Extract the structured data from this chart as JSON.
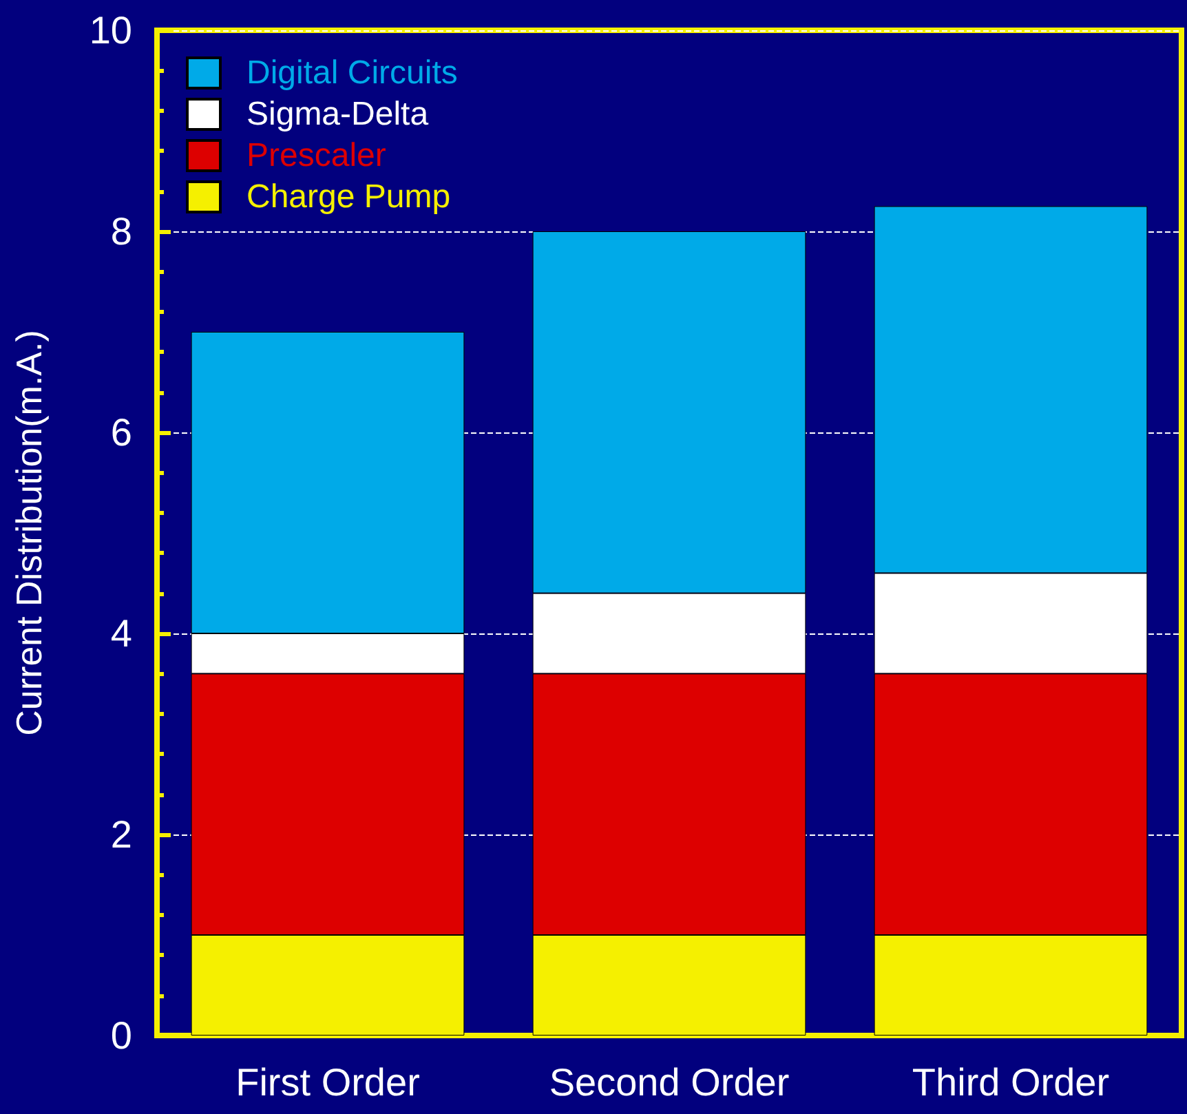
{
  "chart_data": {
    "type": "bar",
    "stacked": true,
    "ylabel": "Current Distribution(m.A.)",
    "categories": [
      "First Order",
      "Second Order",
      "Third Order"
    ],
    "series": [
      {
        "name": "Charge Pump",
        "color": "#f5f000",
        "values": [
          1.0,
          1.0,
          1.0
        ]
      },
      {
        "name": "Prescaler",
        "color": "#dd0000",
        "values": [
          2.6,
          2.6,
          2.6
        ]
      },
      {
        "name": "Sigma-Delta",
        "color": "#ffffff",
        "values": [
          0.4,
          0.8,
          1.0
        ]
      },
      {
        "name": "Digital Circuits",
        "color": "#00aae8",
        "values": [
          3.0,
          3.6,
          3.65
        ]
      }
    ],
    "ylim": [
      0,
      10
    ],
    "yticks": [
      0,
      2,
      4,
      6,
      8,
      10
    ],
    "grid": "y",
    "legend": "top left"
  }
}
